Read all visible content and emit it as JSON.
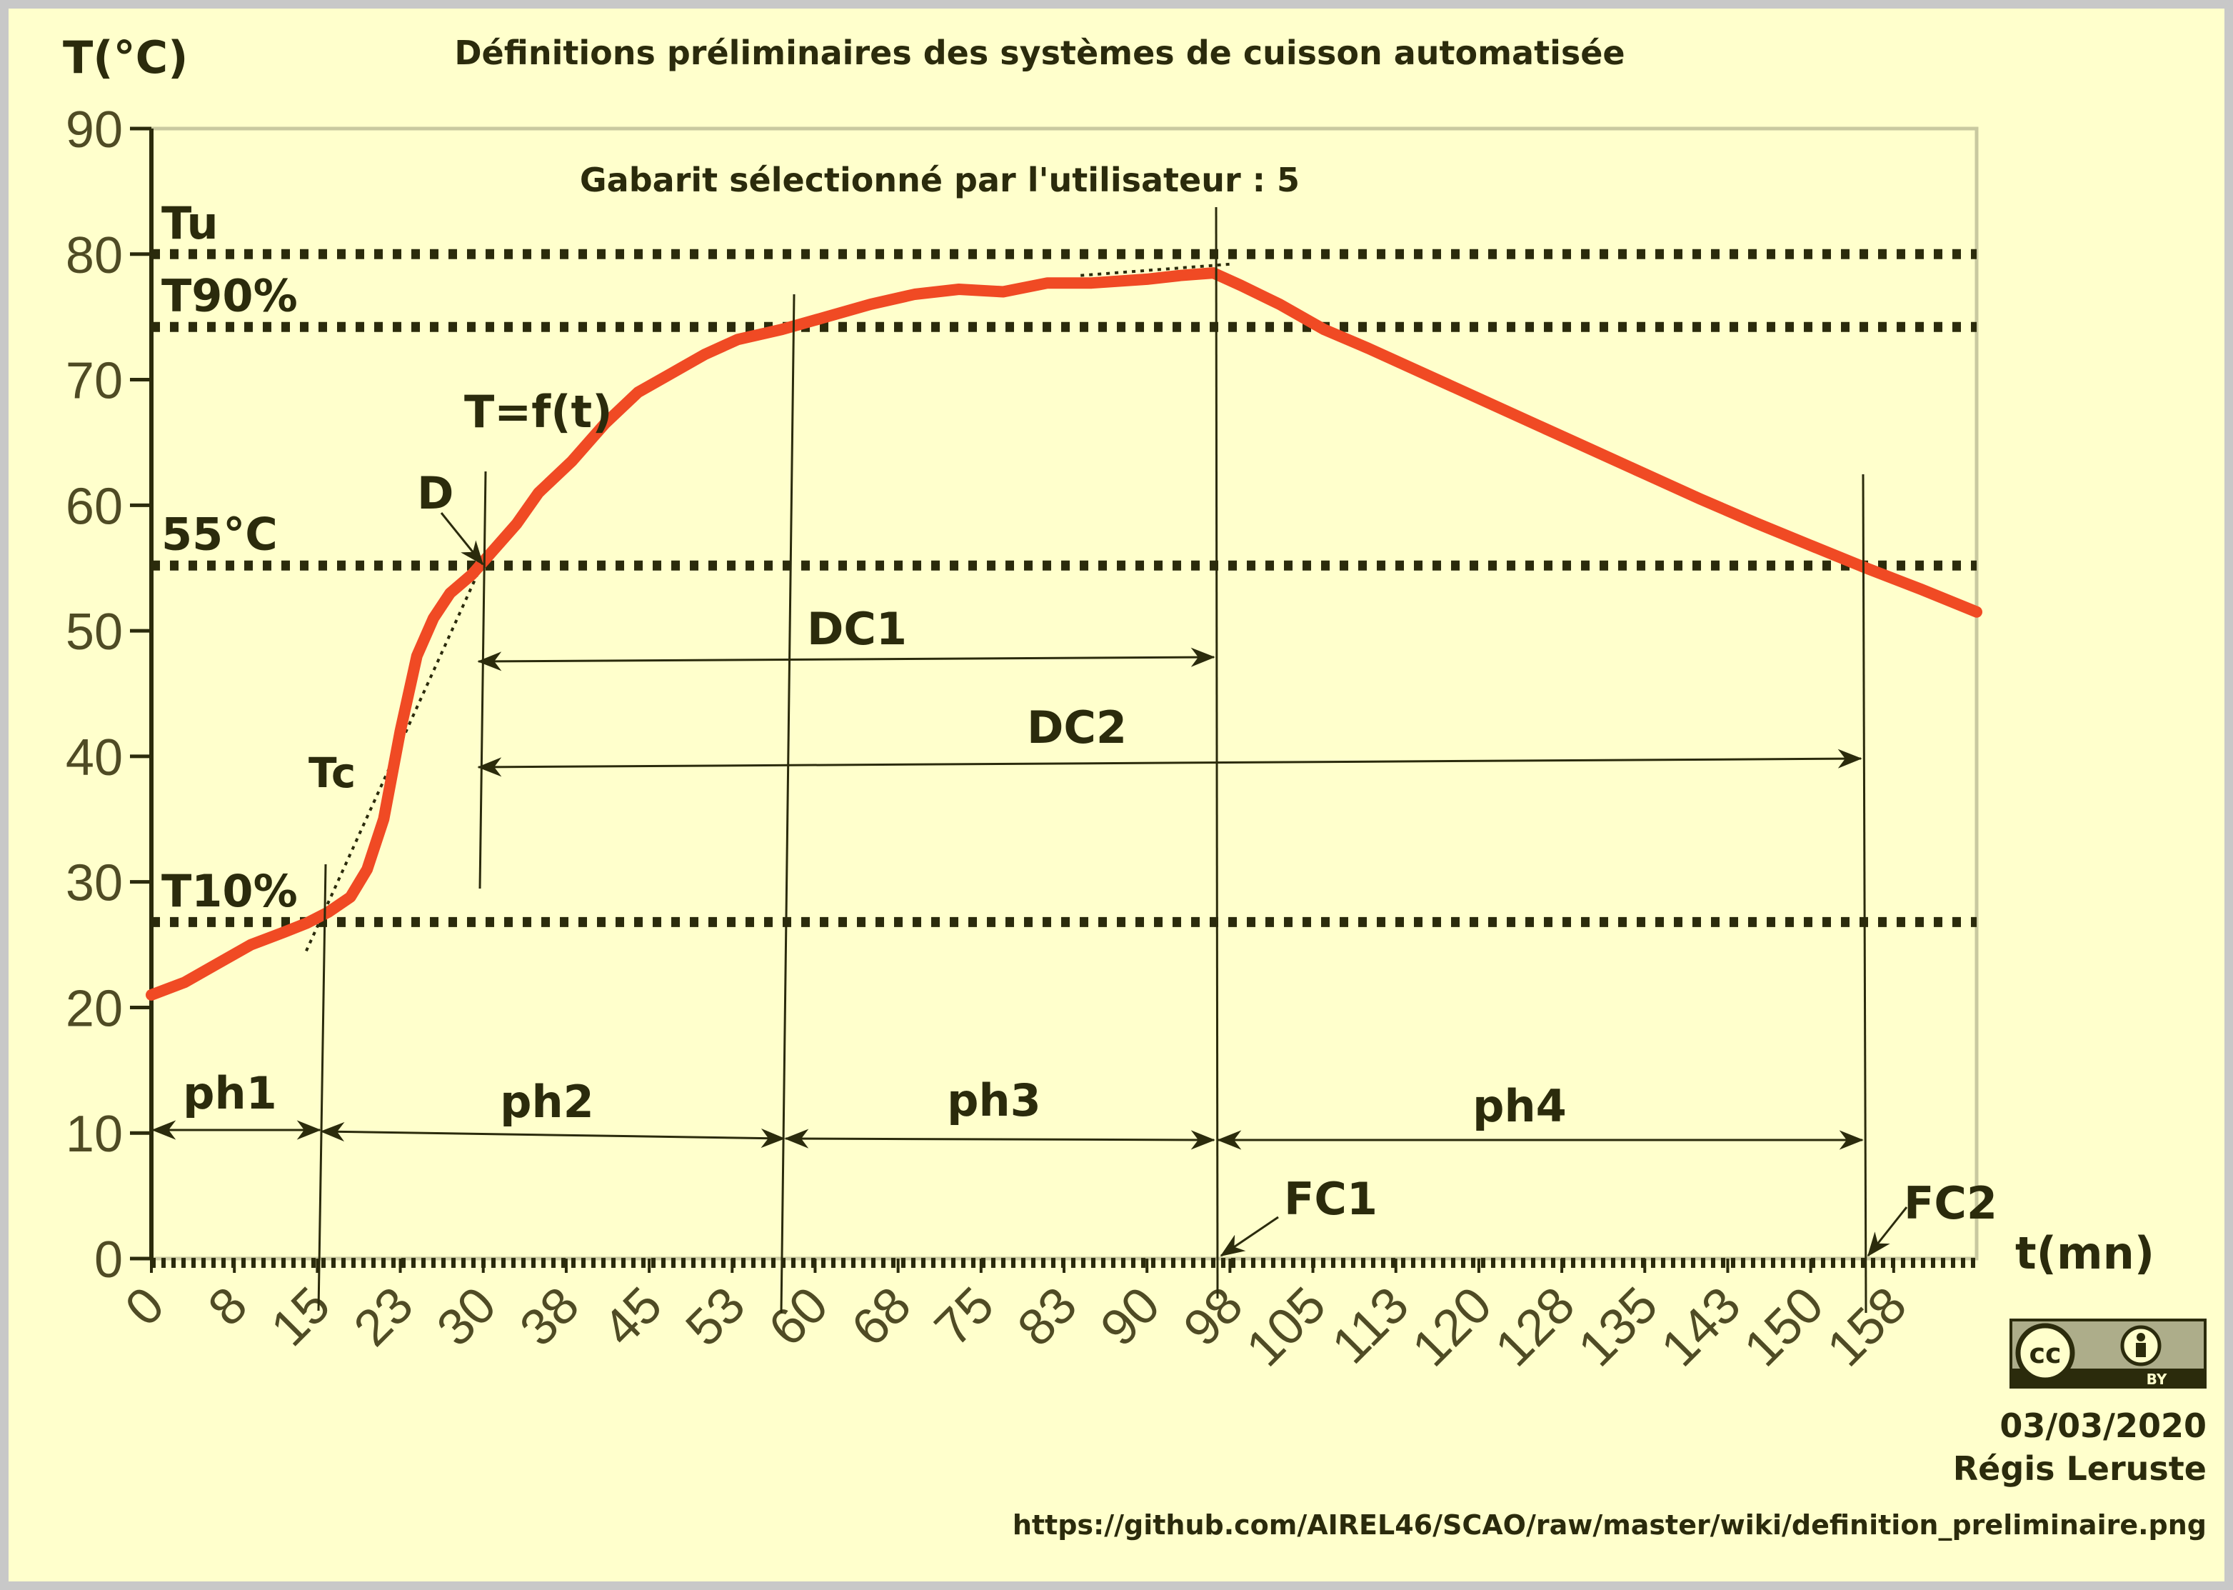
{
  "colors": {
    "background": "#ffffcc",
    "frame": "#c8c8c8",
    "curve": "#f04a24",
    "ink": "#2b2b0c",
    "tick": "#4f4b24",
    "axis_box": "#c9c9a0"
  },
  "chart_data": {
    "type": "line",
    "title": "Définitions préliminaires des systèmes de cuisson automatisée",
    "subtitle": "Gabarit sélectionné par l'utilisateur : 5",
    "ylabel": "T(°C)",
    "xlabel": "t(mn)",
    "ylim": [
      0,
      90
    ],
    "xlim": [
      0,
      165
    ],
    "y_ticks": [
      "0",
      "10",
      "20",
      "30",
      "40",
      "50",
      "60",
      "70",
      "80",
      "90"
    ],
    "x_ticks": [
      {
        "label": "0",
        "x": 0
      },
      {
        "label": "8",
        "x": 7.5
      },
      {
        "label": "15",
        "x": 15
      },
      {
        "label": "23",
        "x": 22.5
      },
      {
        "label": "30",
        "x": 30
      },
      {
        "label": "38",
        "x": 37.5
      },
      {
        "label": "45",
        "x": 45
      },
      {
        "label": "53",
        "x": 52.5
      },
      {
        "label": "60",
        "x": 60
      },
      {
        "label": "68",
        "x": 67.5
      },
      {
        "label": "75",
        "x": 75
      },
      {
        "label": "83",
        "x": 82.5
      },
      {
        "label": "90",
        "x": 90
      },
      {
        "label": "98",
        "x": 97.5
      },
      {
        "label": "105",
        "x": 105
      },
      {
        "label": "113",
        "x": 112.5
      },
      {
        "label": "120",
        "x": 120
      },
      {
        "label": "128",
        "x": 127.5
      },
      {
        "label": "135",
        "x": 135
      },
      {
        "label": "143",
        "x": 142.5
      },
      {
        "label": "150",
        "x": 150
      },
      {
        "label": "158",
        "x": 157.5
      }
    ],
    "series": [
      {
        "name": "T=f(t)",
        "points": [
          [
            0,
            21
          ],
          [
            3,
            22
          ],
          [
            6,
            23.5
          ],
          [
            9,
            25
          ],
          [
            12,
            26
          ],
          [
            14,
            26.7
          ],
          [
            16,
            27.6
          ],
          [
            18,
            28.8
          ],
          [
            19.5,
            31
          ],
          [
            21,
            35
          ],
          [
            22.5,
            42
          ],
          [
            24,
            48
          ],
          [
            25.5,
            51
          ],
          [
            27,
            53
          ],
          [
            29,
            54.5
          ],
          [
            30.5,
            56
          ],
          [
            33,
            58.5
          ],
          [
            35,
            61
          ],
          [
            38,
            63.5
          ],
          [
            41,
            66.5
          ],
          [
            44,
            69
          ],
          [
            47,
            70.5
          ],
          [
            50,
            72
          ],
          [
            53,
            73.2
          ],
          [
            57,
            74
          ],
          [
            61,
            75
          ],
          [
            65,
            76
          ],
          [
            69,
            76.8
          ],
          [
            73,
            77.2
          ],
          [
            77,
            77
          ],
          [
            81,
            77.7
          ],
          [
            85,
            77.7
          ],
          [
            90,
            78
          ],
          [
            93,
            78.3
          ],
          [
            96,
            78.5
          ],
          [
            98.5,
            77.5
          ],
          [
            102,
            76
          ],
          [
            106,
            74
          ],
          [
            110,
            72.5
          ],
          [
            115,
            70.5
          ],
          [
            120,
            68.5
          ],
          [
            125,
            66.5
          ],
          [
            130,
            64.5
          ],
          [
            135,
            62.5
          ],
          [
            140,
            60.5
          ],
          [
            145,
            58.6
          ],
          [
            150,
            56.8
          ],
          [
            155,
            55
          ],
          [
            160,
            53.3
          ],
          [
            165,
            51.5
          ]
        ]
      }
    ],
    "thresholds": [
      {
        "label": "Tu",
        "value": 80
      },
      {
        "label": "T90%",
        "value": 74.2
      },
      {
        "label": "55°C",
        "value": 55.2
      },
      {
        "label": "T10%",
        "value": 26.8
      }
    ],
    "annotations": {
      "D": "D",
      "Tc": "Tc",
      "DC1": "DC1",
      "DC2": "DC2",
      "FC1": "FC1",
      "FC2": "FC2",
      "phases": [
        "ph1",
        "ph2",
        "ph3",
        "ph4"
      ]
    }
  },
  "license_badge": {
    "cc": "cc",
    "by": "BY"
  },
  "footer": {
    "date": "03/03/2020",
    "author": "Régis Leruste",
    "url": "https://github.com/AIREL46/SCAO/raw/master/wiki/definition_preliminaire.png"
  }
}
